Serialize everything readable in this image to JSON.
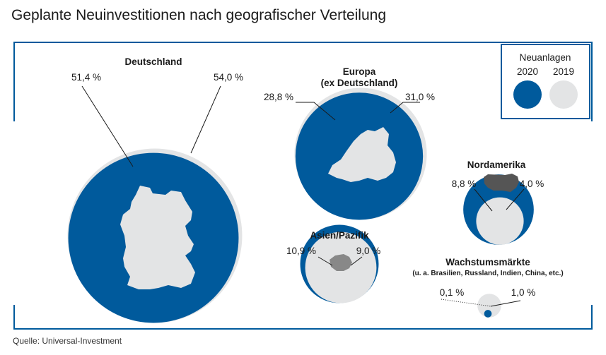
{
  "title": "Geplante Neuinvestitionen nach geografischer Verteilung",
  "source": "Quelle: Universal-Investment",
  "colors": {
    "current": "#005a9c",
    "previous": "#e3e4e5",
    "frame": "#005a9c",
    "silhouette": "#e3e4e5",
    "silhouette_dark": "#555555"
  },
  "legend": {
    "title": "Neuanlagen",
    "current_label": "2020",
    "previous_label": "2019"
  },
  "chart_data": {
    "type": "proportional-circles",
    "title": "Geplante Neuinvestitionen nach geografischer Verteilung",
    "series": [
      {
        "name": "2020",
        "values": [
          51.4,
          28.8,
          8.8,
          10.9,
          0.1
        ]
      },
      {
        "name": "2019",
        "values": [
          54.0,
          31.0,
          4.0,
          9.0,
          1.0
        ]
      }
    ],
    "regions": [
      {
        "key": "de",
        "name": "Deutschland",
        "subtitle": "",
        "value_2020": 51.4,
        "value_2019": 54.0,
        "label_2020": "51,4 %",
        "label_2019": "54,0 %",
        "icon": "germany-map-icon"
      },
      {
        "key": "eu",
        "name": "Europa",
        "subtitle": "(ex Deutschland)",
        "value_2020": 28.8,
        "value_2019": 31.0,
        "label_2020": "28,8 %",
        "label_2019": "31,0 %",
        "icon": "europe-map-icon"
      },
      {
        "key": "na",
        "name": "Nordamerika",
        "subtitle": "",
        "value_2020": 8.8,
        "value_2019": 4.0,
        "label_2020": "8,8 %",
        "label_2019": "4,0 %",
        "icon": "usa-map-icon"
      },
      {
        "key": "ap",
        "name": "Asien/Pazifik",
        "subtitle": "",
        "value_2020": 10.9,
        "value_2019": 9.0,
        "label_2020": "10,9 %",
        "label_2019": "9,0 %",
        "icon": "asia-map-icon"
      },
      {
        "key": "em",
        "name": "Wachstumsmärkte",
        "subtitle": "(u. a. Brasilien, Russland, Indien, China, etc.)",
        "value_2020": 0.1,
        "value_2019": 1.0,
        "label_2020": "0,1 %",
        "label_2019": "1,0 %",
        "icon": ""
      }
    ]
  }
}
